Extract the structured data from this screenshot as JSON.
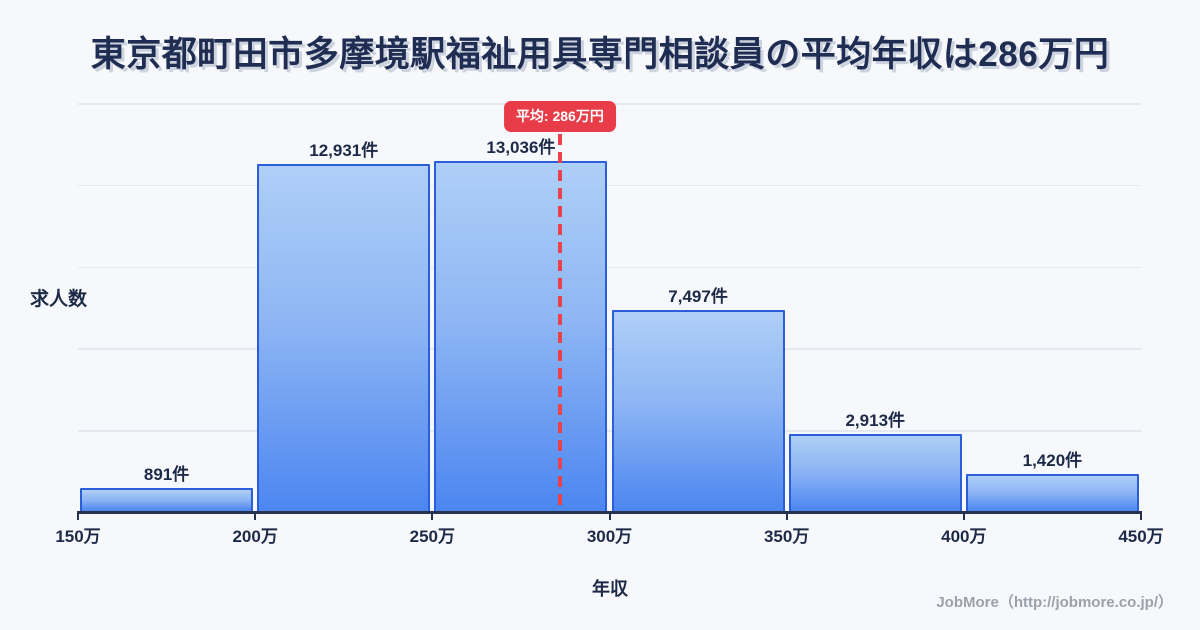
{
  "title": "東京都町田市多摩境駅福祉用具専門相談員の平均年収は286万円",
  "chart_data": {
    "type": "bar",
    "subtype": "histogram",
    "categories": [
      "150万-200万",
      "200万-250万",
      "250万-300万",
      "300万-350万",
      "350万-400万",
      "400万-450万"
    ],
    "values": [
      891,
      12931,
      13036,
      7497,
      2913,
      1420
    ],
    "bar_labels": [
      "891件",
      "12,931件",
      "13,036件",
      "7,497件",
      "2,913件",
      "1,420件"
    ],
    "x_tick_labels": [
      "150万",
      "200万",
      "250万",
      "300万",
      "350万",
      "400万",
      "450万"
    ],
    "x_range": [
      150,
      450
    ],
    "ylim_estimated": [
      0,
      15200
    ],
    "gridlines": 5,
    "grid": "horizontal",
    "yaxis_numeric_labels": false,
    "xlabel": "年収",
    "ylabel": "求人数",
    "average": {
      "value": 286,
      "label": "平均: 286万円"
    },
    "colors": {
      "background": "#f7f8fb",
      "bar_fill_top": "#aecff7",
      "bar_fill_bottom": "#4c86f1",
      "bar_border": "#2a5fd9",
      "accent_red": "#e83c49",
      "text_dark": "#1d2a47",
      "grid": "#e4e8ef",
      "footer_gray": "#9ba1ab"
    }
  },
  "footer": {
    "credit": "JobMore（http://jobmore.co.jp/）"
  }
}
